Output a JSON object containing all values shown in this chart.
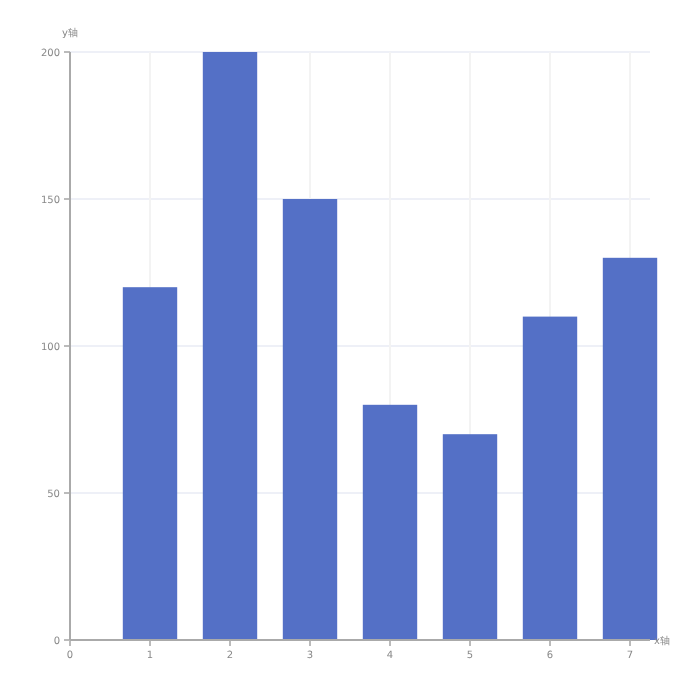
{
  "chart_data": {
    "type": "bar",
    "xlabel": "x轴",
    "ylabel": "y轴",
    "x": [
      1,
      2,
      3,
      4,
      5,
      6,
      7
    ],
    "values": [
      120,
      200,
      150,
      80,
      70,
      110,
      130
    ],
    "color": "#5470c6",
    "xlim": [
      0,
      7.25
    ],
    "xticks": [
      0,
      1,
      2,
      3,
      4,
      5,
      6,
      7
    ],
    "ylim": [
      0,
      200
    ],
    "yticks": [
      0,
      50,
      100,
      150,
      200
    ],
    "grid": true
  }
}
